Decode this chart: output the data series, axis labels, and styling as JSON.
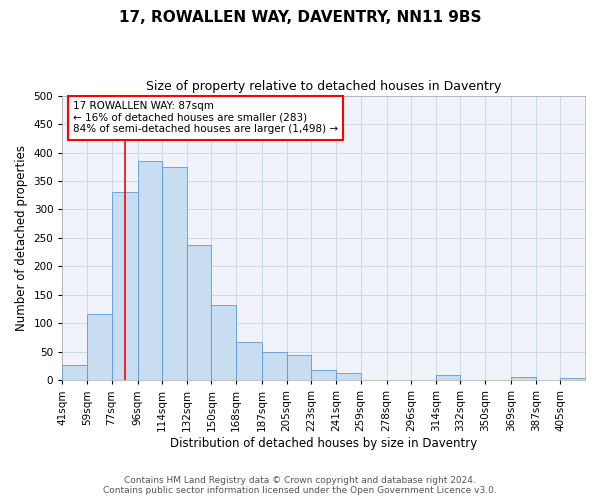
{
  "title": "17, ROWALLEN WAY, DAVENTRY, NN11 9BS",
  "subtitle": "Size of property relative to detached houses in Daventry",
  "xlabel": "Distribution of detached houses by size in Daventry",
  "ylabel": "Number of detached properties",
  "bin_labels": [
    "41sqm",
    "59sqm",
    "77sqm",
    "96sqm",
    "114sqm",
    "132sqm",
    "150sqm",
    "168sqm",
    "187sqm",
    "205sqm",
    "223sqm",
    "241sqm",
    "259sqm",
    "278sqm",
    "296sqm",
    "314sqm",
    "332sqm",
    "350sqm",
    "369sqm",
    "387sqm",
    "405sqm"
  ],
  "bar_heights": [
    27,
    116,
    330,
    385,
    375,
    237,
    133,
    68,
    50,
    44,
    18,
    13,
    0,
    0,
    0,
    10,
    0,
    0,
    5,
    0,
    4
  ],
  "bar_color": "#c9ddf0",
  "bar_edge_color": "#5b9bd5",
  "vline_x": 87,
  "vline_color": "red",
  "annotation_box_text": "17 ROWALLEN WAY: 87sqm\n← 16% of detached houses are smaller (283)\n84% of semi-detached houses are larger (1,498) →",
  "annotation_box_color": "red",
  "ylim": [
    0,
    500
  ],
  "yticks": [
    0,
    50,
    100,
    150,
    200,
    250,
    300,
    350,
    400,
    450,
    500
  ],
  "bin_edges": [
    41,
    59,
    77,
    96,
    114,
    132,
    150,
    168,
    187,
    205,
    223,
    241,
    259,
    278,
    296,
    314,
    332,
    350,
    369,
    387,
    405,
    423
  ],
  "grid_color": "#c8d4e3",
  "footer_line1": "Contains HM Land Registry data © Crown copyright and database right 2024.",
  "footer_line2": "Contains public sector information licensed under the Open Government Licence v3.0.",
  "title_fontsize": 11,
  "subtitle_fontsize": 9,
  "axis_label_fontsize": 8.5,
  "tick_fontsize": 7.5,
  "footer_fontsize": 6.5,
  "bg_color": "#f0f4fa"
}
